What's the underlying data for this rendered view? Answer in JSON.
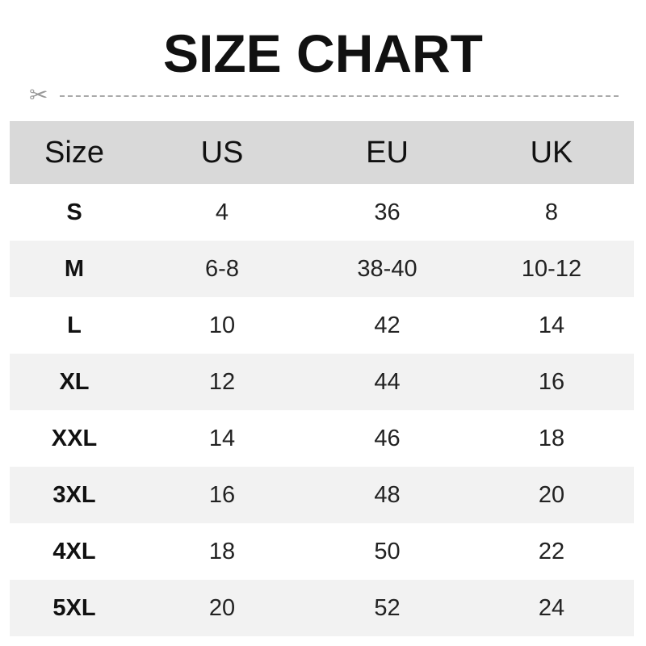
{
  "title": "SIZE CHART",
  "headers": [
    "Size",
    "US",
    "EU",
    "UK"
  ],
  "rows": [
    [
      "S",
      "4",
      "36",
      "8"
    ],
    [
      "M",
      "6-8",
      "38-40",
      "10-12"
    ],
    [
      "L",
      "10",
      "42",
      "14"
    ],
    [
      "XL",
      "12",
      "44",
      "16"
    ],
    [
      "XXL",
      "14",
      "46",
      "18"
    ],
    [
      "3XL",
      "16",
      "48",
      "20"
    ],
    [
      "4XL",
      "18",
      "50",
      "22"
    ],
    [
      "5XL",
      "20",
      "52",
      "24"
    ]
  ],
  "icons": {
    "cut": "scissors-icon"
  },
  "colors": {
    "header_bg": "#d9d9d9",
    "alt_row_bg": "#f2f2f2"
  }
}
